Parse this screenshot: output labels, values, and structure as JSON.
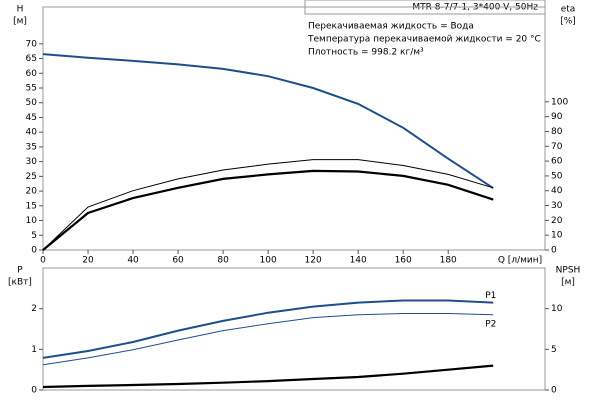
{
  "chart_data": [
    {
      "type": "line",
      "title": "MTR 8-7/7-1, 3*400 V, 50Hz",
      "annotations": [
        "Перекачиваемая жидкость = Вода",
        "Температура перекачиваемой жидкости = 20 °C",
        "Плотность = 998.2 кг/м³"
      ],
      "ylabel": "H",
      "yunit": "[м]",
      "y2label": "eta",
      "y2unit": "[%]",
      "xlabel": "Q [л/мин]",
      "x": [
        0,
        20,
        40,
        60,
        80,
        100,
        120,
        140,
        160,
        180,
        200
      ],
      "xlim": [
        0,
        223
      ],
      "xticks": [
        0,
        20,
        40,
        60,
        80,
        100,
        120,
        140,
        160,
        180
      ],
      "ylim": [
        0,
        82.5
      ],
      "yticks": [
        0,
        5,
        10,
        15,
        20,
        25,
        30,
        35,
        40,
        45,
        50,
        55,
        60,
        65,
        70
      ],
      "y2lim": [
        0,
        164
      ],
      "y2ticks": [
        0,
        10,
        20,
        30,
        40,
        50,
        60,
        70,
        80,
        90,
        100
      ],
      "series": [
        {
          "color": "#1f4e8c",
          "width": 2,
          "values": [
            66.5,
            65.3,
            64.2,
            63,
            61.5,
            59,
            55,
            49.6,
            41.5,
            31,
            21
          ]
        },
        {
          "color": "#000000",
          "width": 1,
          "axis": "y2",
          "values": [
            0,
            29,
            40,
            48,
            54,
            58,
            61,
            61,
            57,
            51,
            42
          ]
        },
        {
          "color": "#000000",
          "width": 2.2,
          "axis": "y2",
          "values": [
            0,
            25,
            35,
            42,
            48,
            51,
            53.4,
            53,
            50,
            44,
            34
          ]
        }
      ]
    },
    {
      "type": "line",
      "ylabel": "P",
      "yunit": "[кВт]",
      "y2label": "NPSH",
      "y2unit": "[м]",
      "x": [
        0,
        20,
        40,
        60,
        80,
        100,
        120,
        140,
        160,
        180,
        200
      ],
      "xlim": [
        0,
        223
      ],
      "ylim": [
        0,
        3.0
      ],
      "yticks": [
        0,
        1,
        2
      ],
      "y2lim": [
        0,
        15
      ],
      "y2ticks": [
        0,
        5,
        10
      ],
      "series": [
        {
          "name": "P1",
          "color": "#1f4e8c",
          "width": 2,
          "values": [
            0.79,
            0.96,
            1.18,
            1.46,
            1.7,
            1.9,
            2.05,
            2.15,
            2.2,
            2.2,
            2.15
          ]
        },
        {
          "name": "P2",
          "color": "#1f4e8c",
          "width": 1,
          "values": [
            0.62,
            0.79,
            0.99,
            1.23,
            1.46,
            1.63,
            1.78,
            1.85,
            1.88,
            1.88,
            1.85
          ]
        },
        {
          "color": "#000000",
          "width": 2.2,
          "axis": "y2",
          "values": [
            0.37,
            0.5,
            0.62,
            0.74,
            0.9,
            1.1,
            1.35,
            1.6,
            2.0,
            2.5,
            3.0
          ]
        }
      ]
    }
  ]
}
